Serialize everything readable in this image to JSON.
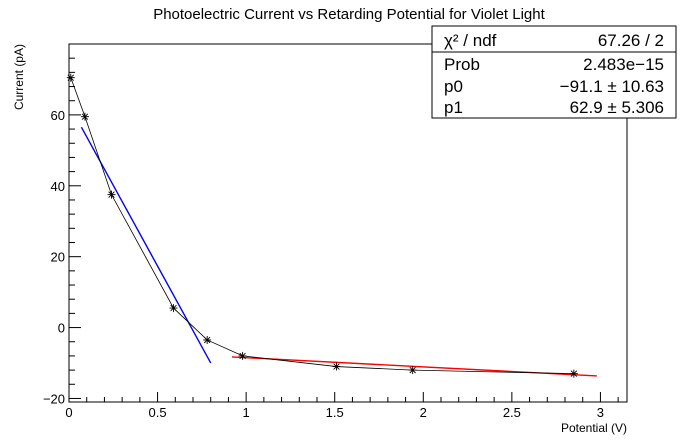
{
  "chart_data": {
    "type": "scatter",
    "title": "Photoelectric Current vs Retarding Potential for Violet Light",
    "xlabel": "Potential (V)",
    "ylabel": "Current (pA)",
    "xlim": [
      0,
      3.15
    ],
    "ylim": [
      -21,
      80
    ],
    "x_ticks": [
      0,
      0.5,
      1,
      1.5,
      2,
      2.5,
      3
    ],
    "x_tick_labels": [
      "0",
      "0.5",
      "1",
      "1.5",
      "2",
      "2.5",
      "3"
    ],
    "y_ticks": [
      -20,
      0,
      20,
      40,
      60
    ],
    "y_tick_labels": [
      "−20",
      "0",
      "20",
      "40",
      "60"
    ],
    "grid": false,
    "series": [
      {
        "name": "",
        "marker": "asterisk",
        "connect_points": true,
        "color": "#000000",
        "x": [
          0.01,
          0.09,
          0.24,
          0.59,
          0.78,
          0.98,
          1.51,
          1.94,
          2.85
        ],
        "y": [
          70.5,
          59.5,
          37.5,
          5.5,
          -3.5,
          -8,
          -11,
          -12,
          -13
        ]
      }
    ],
    "fits": [
      {
        "color": "#0000ff",
        "x_range": [
          0.07,
          0.8
        ],
        "p0": -91.1,
        "p1": 62.9,
        "form": "y = p1 + p0 * x"
      },
      {
        "color": "#ff0000",
        "x_range": [
          0.92,
          2.98
        ],
        "slope": -2.6,
        "intercept": -5.9,
        "form": "y = intercept + slope * x"
      }
    ],
    "stats_box": {
      "placement": "top-right",
      "rows": [
        {
          "label": "χ² / ndf",
          "value": "67.26 / 2"
        },
        {
          "label": "Prob",
          "value": "2.483e−15"
        },
        {
          "label": "p0",
          "value": "−91.1 ± 10.63"
        },
        {
          "label": "p1",
          "value": "62.9 ± 5.306"
        }
      ]
    }
  }
}
